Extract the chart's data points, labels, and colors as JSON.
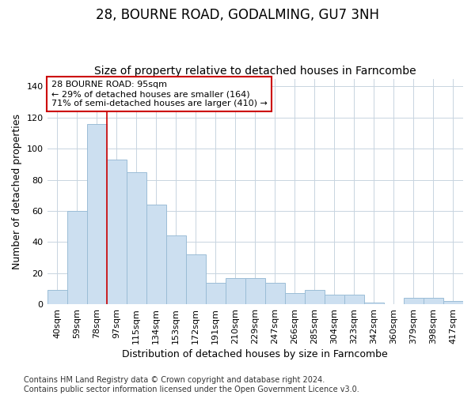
{
  "title": "28, BOURNE ROAD, GODALMING, GU7 3NH",
  "subtitle": "Size of property relative to detached houses in Farncombe",
  "xlabel": "Distribution of detached houses by size in Farncombe",
  "ylabel": "Number of detached properties",
  "categories": [
    "40sqm",
    "59sqm",
    "78sqm",
    "97sqm",
    "115sqm",
    "134sqm",
    "153sqm",
    "172sqm",
    "191sqm",
    "210sqm",
    "229sqm",
    "247sqm",
    "266sqm",
    "285sqm",
    "304sqm",
    "323sqm",
    "342sqm",
    "360sqm",
    "379sqm",
    "398sqm",
    "417sqm"
  ],
  "values": [
    9,
    60,
    116,
    93,
    85,
    64,
    44,
    32,
    14,
    17,
    17,
    14,
    7,
    9,
    6,
    6,
    1,
    0,
    4,
    4,
    2
  ],
  "bar_color": "#ccdff0",
  "bar_edge_color": "#9bbdd6",
  "vline_x_index": 2,
  "vline_color": "#cc0000",
  "annotation_text": "28 BOURNE ROAD: 95sqm\n← 29% of detached houses are smaller (164)\n71% of semi-detached houses are larger (410) →",
  "annotation_box_color": "white",
  "annotation_box_edge": "#cc0000",
  "ylim": [
    0,
    145
  ],
  "yticks": [
    0,
    20,
    40,
    60,
    80,
    100,
    120,
    140
  ],
  "footer": "Contains HM Land Registry data © Crown copyright and database right 2024.\nContains public sector information licensed under the Open Government Licence v3.0.",
  "bg_color": "#ffffff",
  "plot_bg_color": "#ffffff",
  "grid_color": "#c8d4e0",
  "title_fontsize": 12,
  "subtitle_fontsize": 10,
  "axis_label_fontsize": 9,
  "tick_fontsize": 8,
  "footer_fontsize": 7
}
